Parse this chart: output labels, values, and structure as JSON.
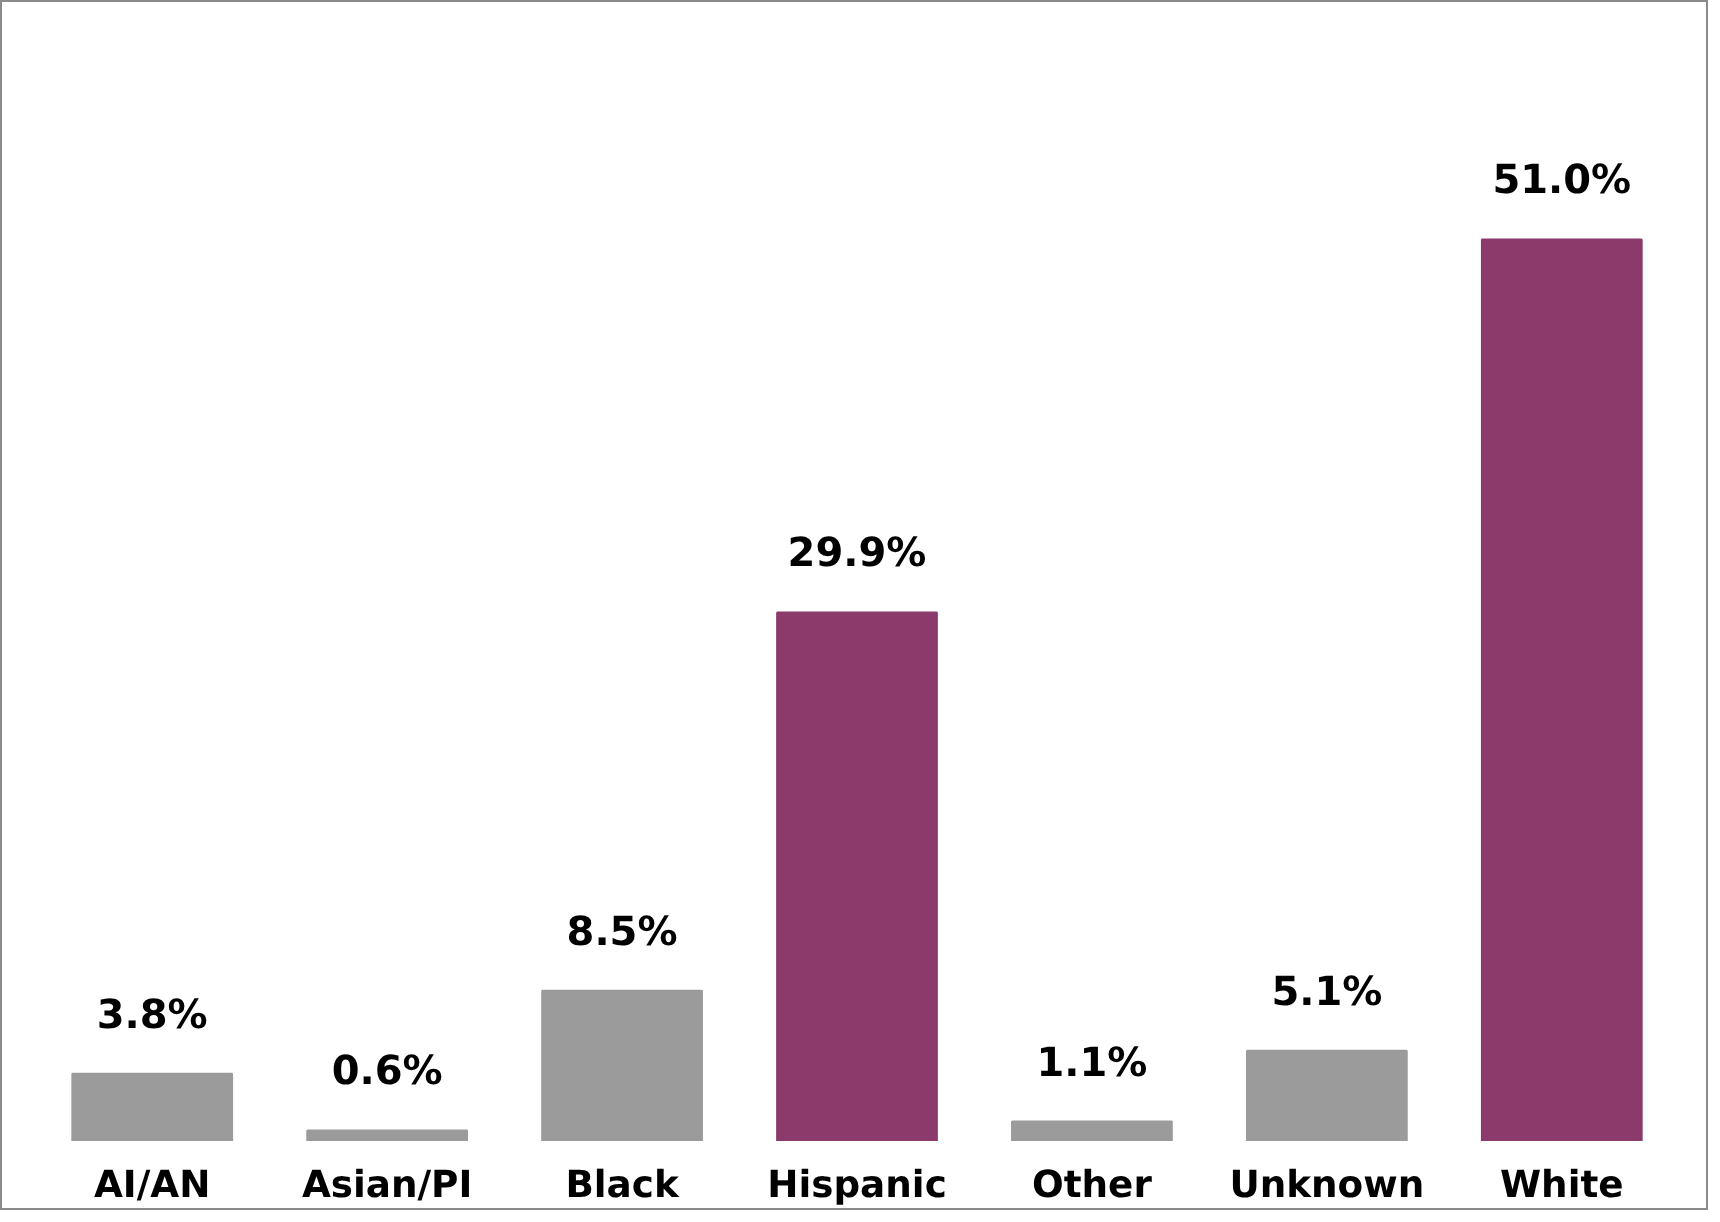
{
  "chart_data": {
    "type": "bar",
    "categories": [
      "AI/AN",
      "Asian/PI",
      "Black",
      "Hispanic",
      "Other",
      "Unknown",
      "White"
    ],
    "values": [
      3.8,
      0.6,
      8.5,
      29.9,
      1.1,
      5.1,
      51.0
    ],
    "colors": [
      "#9b9b9b",
      "#9b9b9b",
      "#9b9b9b",
      "#8b3a6b",
      "#9b9b9b",
      "#9b9b9b",
      "#8b3a6b"
    ],
    "value_labels": [
      "3.8%",
      "0.6%",
      "8.5%",
      "29.9%",
      "1.1%",
      "5.1%",
      "51.0%"
    ]
  }
}
